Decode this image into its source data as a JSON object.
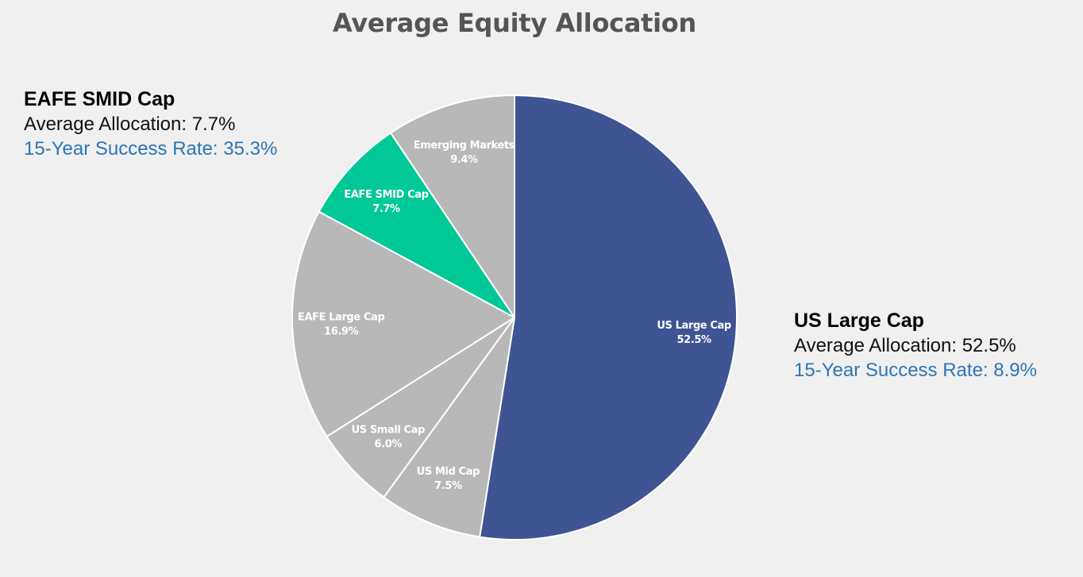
{
  "chart_data": {
    "type": "pie",
    "title": "Average Equity Allocation",
    "start_angle_deg": 0,
    "direction": "clockwise",
    "slices": [
      {
        "name": "US Large Cap",
        "value": 52.5,
        "label": "52.5%",
        "color": "#3f5492"
      },
      {
        "name": "US Mid Cap",
        "value": 7.5,
        "label": "7.5%",
        "color": "#b8b8b8"
      },
      {
        "name": "US Small Cap",
        "value": 6.0,
        "label": "6.0%",
        "color": "#b8b8b8"
      },
      {
        "name": "EAFE Large Cap",
        "value": 16.9,
        "label": "16.9%",
        "color": "#b8b8b8"
      },
      {
        "name": "EAFE SMID Cap",
        "value": 7.7,
        "label": "7.7%",
        "color": "#00c896"
      },
      {
        "name": "Emerging Markets",
        "value": 9.4,
        "label": "9.4%",
        "color": "#b8b8b8"
      }
    ]
  },
  "callouts": {
    "left": {
      "name": "EAFE SMID Cap",
      "allocation": "Average Allocation: 7.7%",
      "success_rate": "15-Year Success Rate: 35.3%"
    },
    "right": {
      "name": "US Large Cap",
      "allocation": "Average Allocation: 52.5%",
      "success_rate": "15-Year Success Rate: 8.9%"
    }
  },
  "colors": {
    "success_rate_text": "#2e75b6",
    "slice_border": "#ffffff"
  }
}
